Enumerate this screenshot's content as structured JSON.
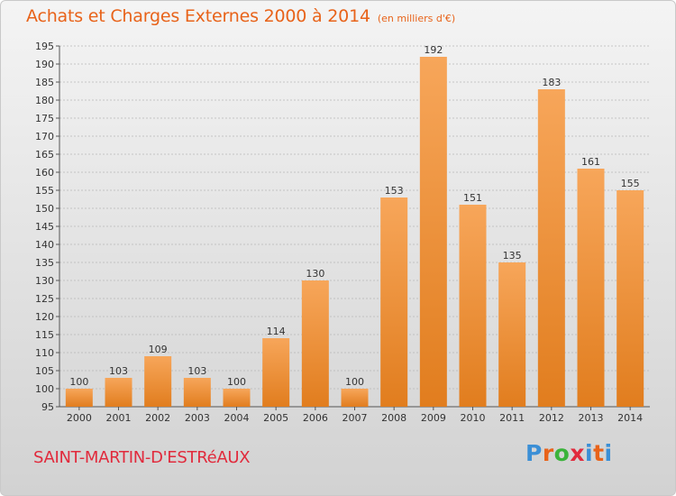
{
  "header": {
    "title": "Achats et Charges Externes 2000 à 2014",
    "unit": "(en milliers d'€)"
  },
  "footer": {
    "city": "SAINT-MARTIN-D'ESTRéAUX",
    "brand": "Proxiti"
  },
  "colors": {
    "title": "#e8631a",
    "city": "#e12a3c",
    "bar_top": "#f7a65a",
    "bar_bottom": "#e17d1e",
    "grid": "#b8b8b8"
  },
  "brand_letter_colors": [
    "#3b8fd6",
    "#e8631a",
    "#3bb33b",
    "#e12a3c",
    "#3b8fd6",
    "#e8631a"
  ],
  "chart_data": {
    "type": "bar",
    "title": "Achats et Charges Externes 2000 à 2014",
    "subtitle": "(en milliers d'€)",
    "xlabel": "",
    "ylabel": "",
    "categories": [
      "2000",
      "2001",
      "2002",
      "2003",
      "2004",
      "2005",
      "2006",
      "2007",
      "2008",
      "2009",
      "2010",
      "2011",
      "2012",
      "2013",
      "2014"
    ],
    "values": [
      100,
      103,
      109,
      103,
      100,
      114,
      130,
      100,
      153,
      192,
      151,
      135,
      183,
      161,
      155
    ],
    "ylim": [
      95,
      195
    ],
    "yticks": [
      95,
      100,
      105,
      110,
      115,
      120,
      125,
      130,
      135,
      140,
      145,
      150,
      155,
      160,
      165,
      170,
      175,
      180,
      185,
      190,
      195
    ],
    "grid": true,
    "legend": "none"
  }
}
